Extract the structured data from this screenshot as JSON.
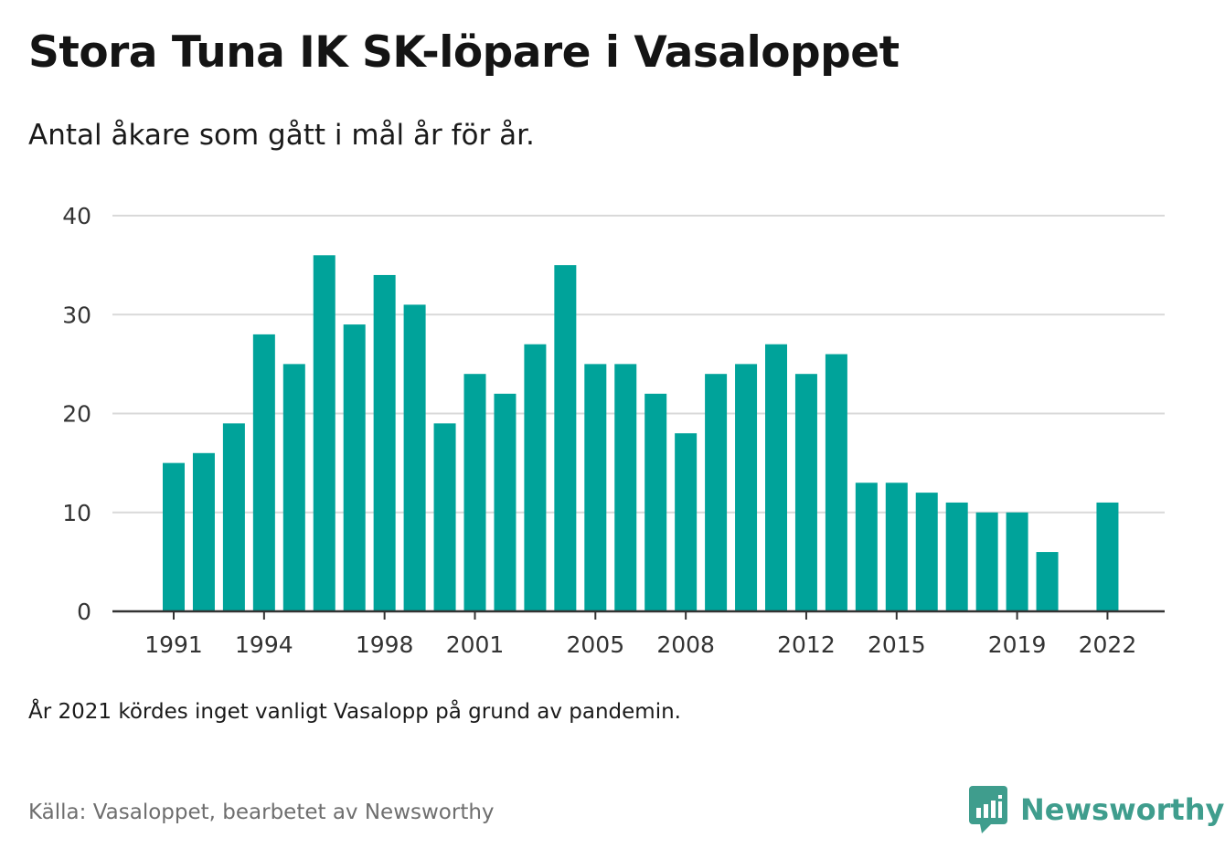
{
  "header": {
    "title": "Stora Tuna IK SK-löpare i Vasaloppet",
    "subtitle": "Antal åkare som gått i mål år för år."
  },
  "footer": {
    "note": "År 2021 kördes inget vanligt Vasalopp på grund av pandemin.",
    "source": "Källa: Vasaloppet, bearbetet av Newsworthy",
    "brand": "Newsworthy",
    "brand_icon": "newsworthy-logo-icon"
  },
  "colors": {
    "bar": "#00a39a",
    "grid": "#d9d9d9",
    "axis": "#333333",
    "brand": "#3f9d8d"
  },
  "chart_data": {
    "type": "bar",
    "title": "Stora Tuna IK SK-löpare i Vasaloppet",
    "subtitle": "Antal åkare som gått i mål år för år.",
    "xlabel": "",
    "ylabel": "",
    "ylim": [
      0,
      40
    ],
    "yticks": [
      0,
      10,
      20,
      30,
      40
    ],
    "xticks": [
      1991,
      1994,
      1998,
      2001,
      2005,
      2008,
      2012,
      2015,
      2019,
      2022
    ],
    "grid": true,
    "legend": "none",
    "x": [
      1991,
      1992,
      1993,
      1994,
      1995,
      1996,
      1997,
      1998,
      1999,
      2000,
      2001,
      2002,
      2003,
      2004,
      2005,
      2006,
      2007,
      2008,
      2009,
      2010,
      2011,
      2012,
      2013,
      2014,
      2015,
      2016,
      2017,
      2018,
      2019,
      2020,
      2021,
      2022
    ],
    "values": [
      15,
      16,
      19,
      28,
      25,
      36,
      29,
      34,
      31,
      19,
      24,
      22,
      27,
      35,
      25,
      25,
      22,
      18,
      24,
      25,
      27,
      24,
      26,
      13,
      13,
      12,
      11,
      10,
      10,
      6,
      null,
      11
    ]
  }
}
